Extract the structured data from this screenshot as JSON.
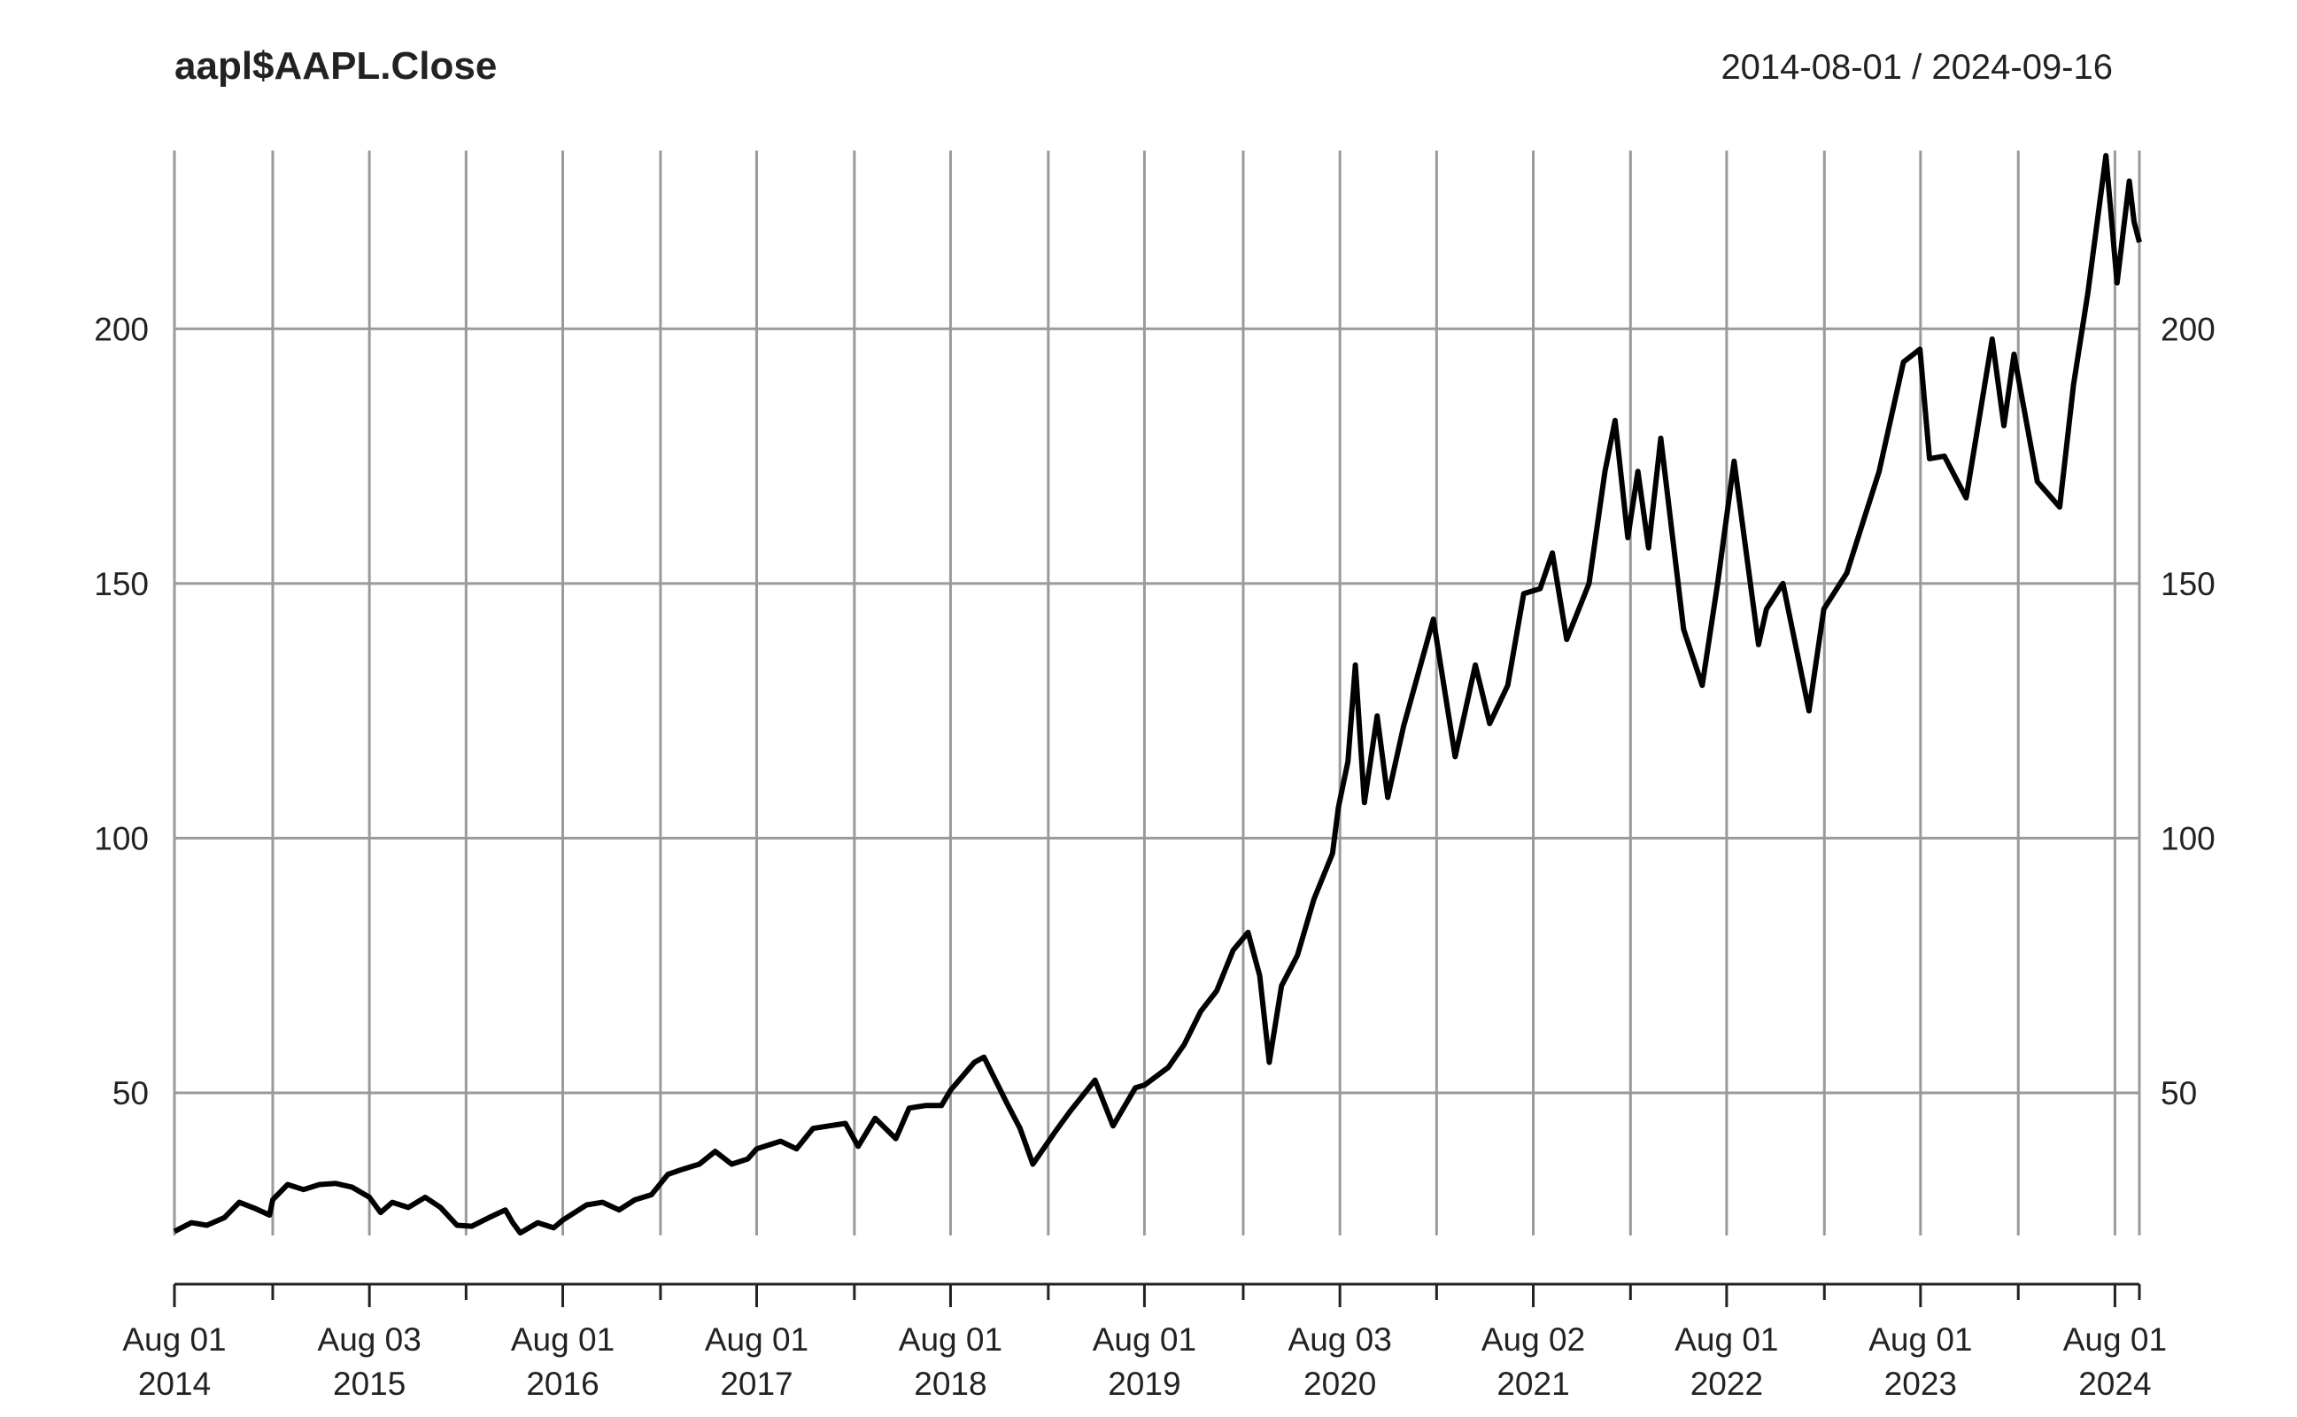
{
  "chart_data": {
    "type": "line",
    "title": "aapl$AAPL.Close",
    "date_range": "2014-08-01 / 2024-09-16",
    "y_ticks": [
      50,
      100,
      150,
      200
    ],
    "ylim": [
      22,
      235
    ],
    "xlim": [
      "2014-08-01",
      "2024-09-16"
    ],
    "grid": true,
    "x_major_ticks": [
      {
        "date": "2014-08-01",
        "label_top": "Aug 01",
        "label_bottom": "2014"
      },
      {
        "date": "2015-08-03",
        "label_top": "Aug 03",
        "label_bottom": "2015"
      },
      {
        "date": "2016-08-01",
        "label_top": "Aug 01",
        "label_bottom": "2016"
      },
      {
        "date": "2017-08-01",
        "label_top": "Aug 01",
        "label_bottom": "2017"
      },
      {
        "date": "2018-08-01",
        "label_top": "Aug 01",
        "label_bottom": "2018"
      },
      {
        "date": "2019-08-01",
        "label_top": "Aug 01",
        "label_bottom": "2019"
      },
      {
        "date": "2020-08-03",
        "label_top": "Aug 03",
        "label_bottom": "2020"
      },
      {
        "date": "2021-08-02",
        "label_top": "Aug 02",
        "label_bottom": "2021"
      },
      {
        "date": "2022-08-01",
        "label_top": "Aug 01",
        "label_bottom": "2022"
      },
      {
        "date": "2023-08-01",
        "label_top": "Aug 01",
        "label_bottom": "2023"
      },
      {
        "date": "2024-08-01",
        "label_top": "Aug 01",
        "label_bottom": "2024"
      }
    ],
    "x_minor_ticks": [
      "2015-02-02",
      "2016-02-01",
      "2017-02-01",
      "2018-02-01",
      "2019-02-01",
      "2020-02-03",
      "2021-02-01",
      "2022-02-01",
      "2023-02-01",
      "2024-02-01",
      "2024-09-16"
    ],
    "series": [
      {
        "color": "#000000",
        "points": [
          [
            "2014-08-01",
            22.8
          ],
          [
            "2014-09-02",
            24.5
          ],
          [
            "2014-10-01",
            24.0
          ],
          [
            "2014-11-03",
            25.5
          ],
          [
            "2014-12-01",
            28.5
          ],
          [
            "2015-01-02",
            27.2
          ],
          [
            "2015-01-27",
            26.0
          ],
          [
            "2015-02-02",
            29.0
          ],
          [
            "2015-03-02",
            32.0
          ],
          [
            "2015-04-01",
            31.0
          ],
          [
            "2015-05-01",
            32.0
          ],
          [
            "2015-06-01",
            32.2
          ],
          [
            "2015-07-01",
            31.5
          ],
          [
            "2015-08-03",
            29.5
          ],
          [
            "2015-08-24",
            26.5
          ],
          [
            "2015-09-15",
            28.5
          ],
          [
            "2015-10-15",
            27.5
          ],
          [
            "2015-11-16",
            29.5
          ],
          [
            "2015-12-15",
            27.5
          ],
          [
            "2016-01-15",
            24.0
          ],
          [
            "2016-02-12",
            23.8
          ],
          [
            "2016-03-15",
            25.5
          ],
          [
            "2016-04-15",
            27.0
          ],
          [
            "2016-04-29",
            24.5
          ],
          [
            "2016-05-13",
            22.5
          ],
          [
            "2016-06-15",
            24.5
          ],
          [
            "2016-07-15",
            23.5
          ],
          [
            "2016-08-01",
            25.0
          ],
          [
            "2016-09-15",
            28.0
          ],
          [
            "2016-10-15",
            28.5
          ],
          [
            "2016-11-15",
            27.0
          ],
          [
            "2016-12-15",
            29.0
          ],
          [
            "2017-01-15",
            30.0
          ],
          [
            "2017-02-15",
            34.0
          ],
          [
            "2017-03-15",
            35.0
          ],
          [
            "2017-04-15",
            36.0
          ],
          [
            "2017-05-15",
            38.5
          ],
          [
            "2017-06-15",
            36.0
          ],
          [
            "2017-07-15",
            37.0
          ],
          [
            "2017-08-01",
            39.0
          ],
          [
            "2017-09-15",
            40.5
          ],
          [
            "2017-10-15",
            39.0
          ],
          [
            "2017-11-15",
            43.0
          ],
          [
            "2017-12-15",
            43.5
          ],
          [
            "2018-01-15",
            44.0
          ],
          [
            "2018-02-08",
            39.5
          ],
          [
            "2018-03-12",
            45.0
          ],
          [
            "2018-04-20",
            41.0
          ],
          [
            "2018-05-15",
            47.0
          ],
          [
            "2018-06-15",
            47.5
          ],
          [
            "2018-07-15",
            47.5
          ],
          [
            "2018-08-01",
            50.5
          ],
          [
            "2018-09-15",
            56.0
          ],
          [
            "2018-10-03",
            57.0
          ],
          [
            "2018-11-15",
            48.0
          ],
          [
            "2018-12-10",
            43.0
          ],
          [
            "2019-01-03",
            36.0
          ],
          [
            "2019-02-15",
            42.5
          ],
          [
            "2019-03-15",
            46.5
          ],
          [
            "2019-04-30",
            52.5
          ],
          [
            "2019-06-03",
            43.5
          ],
          [
            "2019-07-15",
            51.0
          ],
          [
            "2019-08-01",
            51.5
          ],
          [
            "2019-09-15",
            55.0
          ],
          [
            "2019-10-15",
            59.5
          ],
          [
            "2019-11-15",
            66.0
          ],
          [
            "2019-12-15",
            70.0
          ],
          [
            "2020-01-15",
            78.0
          ],
          [
            "2020-02-12",
            81.5
          ],
          [
            "2020-03-05",
            73.0
          ],
          [
            "2020-03-23",
            56.0
          ],
          [
            "2020-04-15",
            71.0
          ],
          [
            "2020-05-15",
            77.0
          ],
          [
            "2020-06-15",
            88.0
          ],
          [
            "2020-07-20",
            97.0
          ],
          [
            "2020-07-31",
            106.0
          ],
          [
            "2020-08-18",
            115.0
          ],
          [
            "2020-09-01",
            134.0
          ],
          [
            "2020-09-18",
            107.0
          ],
          [
            "2020-10-12",
            124.0
          ],
          [
            "2020-11-01",
            108.0
          ],
          [
            "2020-12-01",
            122.0
          ],
          [
            "2021-01-26",
            143.0
          ],
          [
            "2021-03-08",
            116.0
          ],
          [
            "2021-04-15",
            134.0
          ],
          [
            "2021-05-12",
            122.5
          ],
          [
            "2021-06-15",
            130.0
          ],
          [
            "2021-07-15",
            148.0
          ],
          [
            "2021-08-15",
            149.0
          ],
          [
            "2021-09-07",
            156.0
          ],
          [
            "2021-10-04",
            139.0
          ],
          [
            "2021-11-15",
            150.0
          ],
          [
            "2021-12-15",
            172.0
          ],
          [
            "2022-01-03",
            182.0
          ],
          [
            "2022-01-27",
            159.0
          ],
          [
            "2022-02-15",
            172.0
          ],
          [
            "2022-03-07",
            157.0
          ],
          [
            "2022-03-30",
            178.5
          ],
          [
            "2022-05-12",
            141.0
          ],
          [
            "2022-06-16",
            130.0
          ],
          [
            "2022-07-15",
            150.0
          ],
          [
            "2022-08-15",
            174.0
          ],
          [
            "2022-09-30",
            138.0
          ],
          [
            "2022-10-15",
            145.0
          ],
          [
            "2022-11-15",
            150.0
          ],
          [
            "2023-01-03",
            125.0
          ],
          [
            "2023-01-31",
            145.0
          ],
          [
            "2023-03-15",
            152.0
          ],
          [
            "2023-05-15",
            172.0
          ],
          [
            "2023-06-30",
            193.5
          ],
          [
            "2023-07-31",
            196.0
          ],
          [
            "2023-08-18",
            174.5
          ],
          [
            "2023-09-15",
            175.0
          ],
          [
            "2023-10-26",
            166.8
          ],
          [
            "2023-12-14",
            198.0
          ],
          [
            "2024-01-05",
            181.0
          ],
          [
            "2024-01-24",
            195.0
          ],
          [
            "2024-03-08",
            170.0
          ],
          [
            "2024-04-19",
            165.0
          ],
          [
            "2024-05-15",
            189.0
          ],
          [
            "2024-06-11",
            207.0
          ],
          [
            "2024-07-15",
            234.0
          ],
          [
            "2024-08-05",
            209.0
          ],
          [
            "2024-08-28",
            229.0
          ],
          [
            "2024-09-06",
            221.0
          ],
          [
            "2024-09-16",
            217.0
          ]
        ]
      }
    ]
  }
}
